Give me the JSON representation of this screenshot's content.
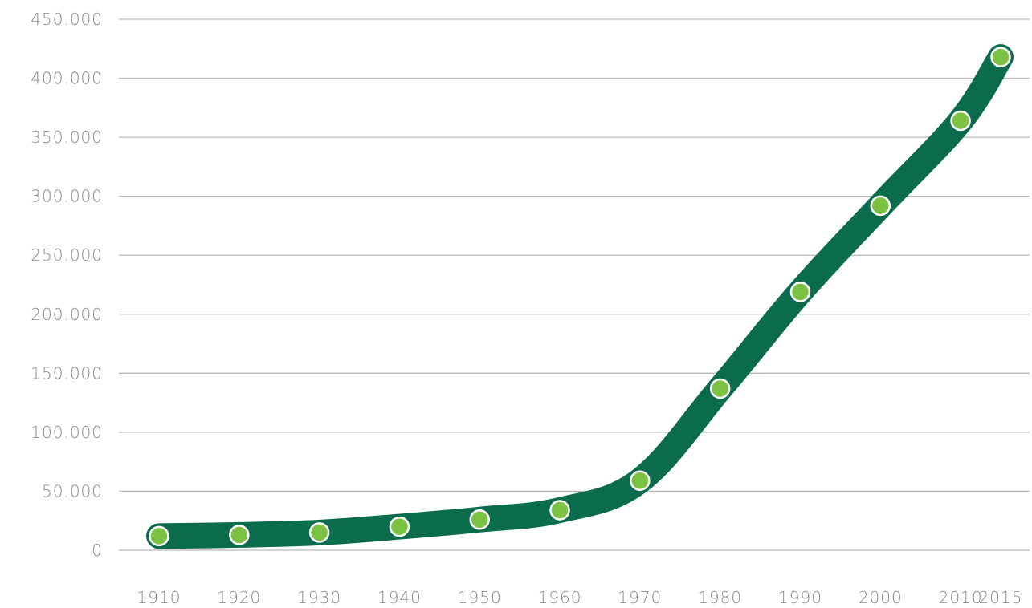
{
  "chart_data": {
    "type": "line",
    "x": [
      "1910",
      "1920",
      "1930",
      "1940",
      "1950",
      "1960",
      "1970",
      "1980",
      "1990",
      "2000",
      "2010",
      "2015"
    ],
    "series": [
      {
        "values": [
          12000,
          13000,
          15000,
          20000,
          26000,
          34000,
          59000,
          137000,
          219000,
          292000,
          364000,
          418000
        ]
      }
    ],
    "yticks": [
      "0",
      "50.000",
      "100.000",
      "150.000",
      "200.000",
      "250.000",
      "300.000",
      "350.000",
      "400.000",
      "450.000"
    ],
    "ylim": [
      0,
      450000
    ],
    "grid": true,
    "legend": "none",
    "title": "",
    "xlabel": "",
    "ylabel": "",
    "colors": {
      "line": "#0b6b4d",
      "marker": "#7cc242",
      "marker_outline": "#ffffff",
      "grid": "#b9b9b9",
      "tick_text": "#8a8a8a"
    }
  }
}
